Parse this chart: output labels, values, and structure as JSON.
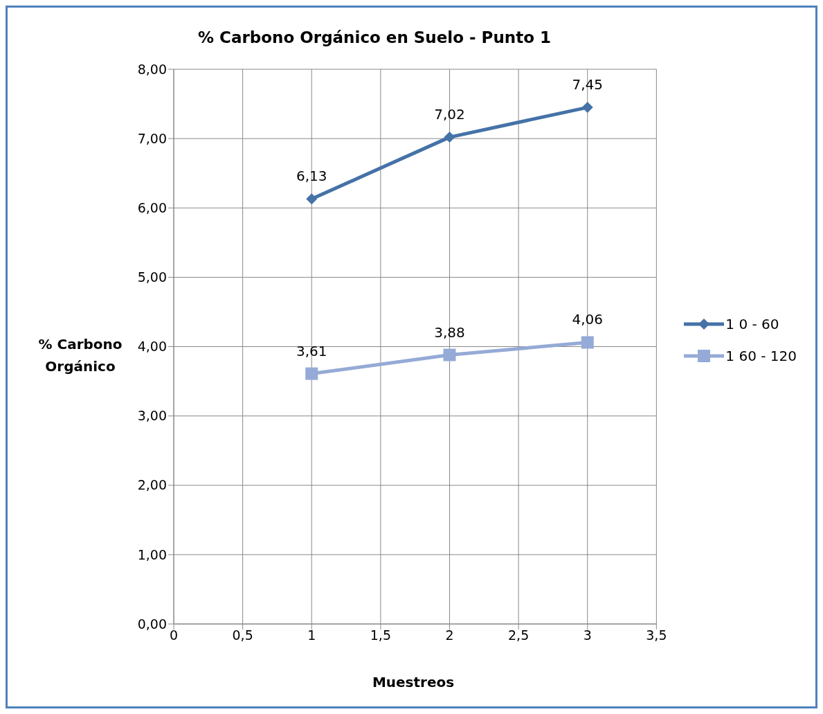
{
  "chart_data": {
    "type": "line",
    "title": "% Carbono Orgánico en Suelo - Punto 1",
    "xlabel": "Muestreos",
    "ylabel": "% Carbono Orgánico",
    "x": [
      1,
      2,
      3
    ],
    "series": [
      {
        "name": "1 0 - 60",
        "color": "#4572a7",
        "values": [
          6.13,
          7.02,
          7.45
        ],
        "value_labels": [
          "6,13",
          "7,02",
          "7,45"
        ],
        "marker": "diamond"
      },
      {
        "name": "1 60 - 120",
        "color": "#95aad6",
        "values": [
          3.61,
          3.88,
          4.06
        ],
        "value_labels": [
          "3,61",
          "3,88",
          "4,06"
        ],
        "marker": "square"
      }
    ],
    "xlim": [
      0,
      3.5
    ],
    "xticks": [
      0,
      {
        "value": 0.5,
        "label": "0,5"
      },
      1,
      {
        "value": 1.5,
        "label": "1,5"
      },
      2,
      {
        "value": 2.5,
        "label": "2,5"
      },
      3,
      {
        "value": 3.5,
        "label": "3,5"
      }
    ],
    "ylim": [
      0,
      8
    ],
    "yticks": [
      {
        "value": 0,
        "label": "0,00"
      },
      {
        "value": 1,
        "label": "1,00"
      },
      {
        "value": 2,
        "label": "2,00"
      },
      {
        "value": 3,
        "label": "3,00"
      },
      {
        "value": 4,
        "label": "4,00"
      },
      {
        "value": 5,
        "label": "5,00"
      },
      {
        "value": 6,
        "label": "6,00"
      },
      {
        "value": 7,
        "label": "7,00"
      },
      {
        "value": 8,
        "label": "8,00"
      }
    ],
    "grid": true,
    "legend": "right",
    "line_style": "solid"
  }
}
